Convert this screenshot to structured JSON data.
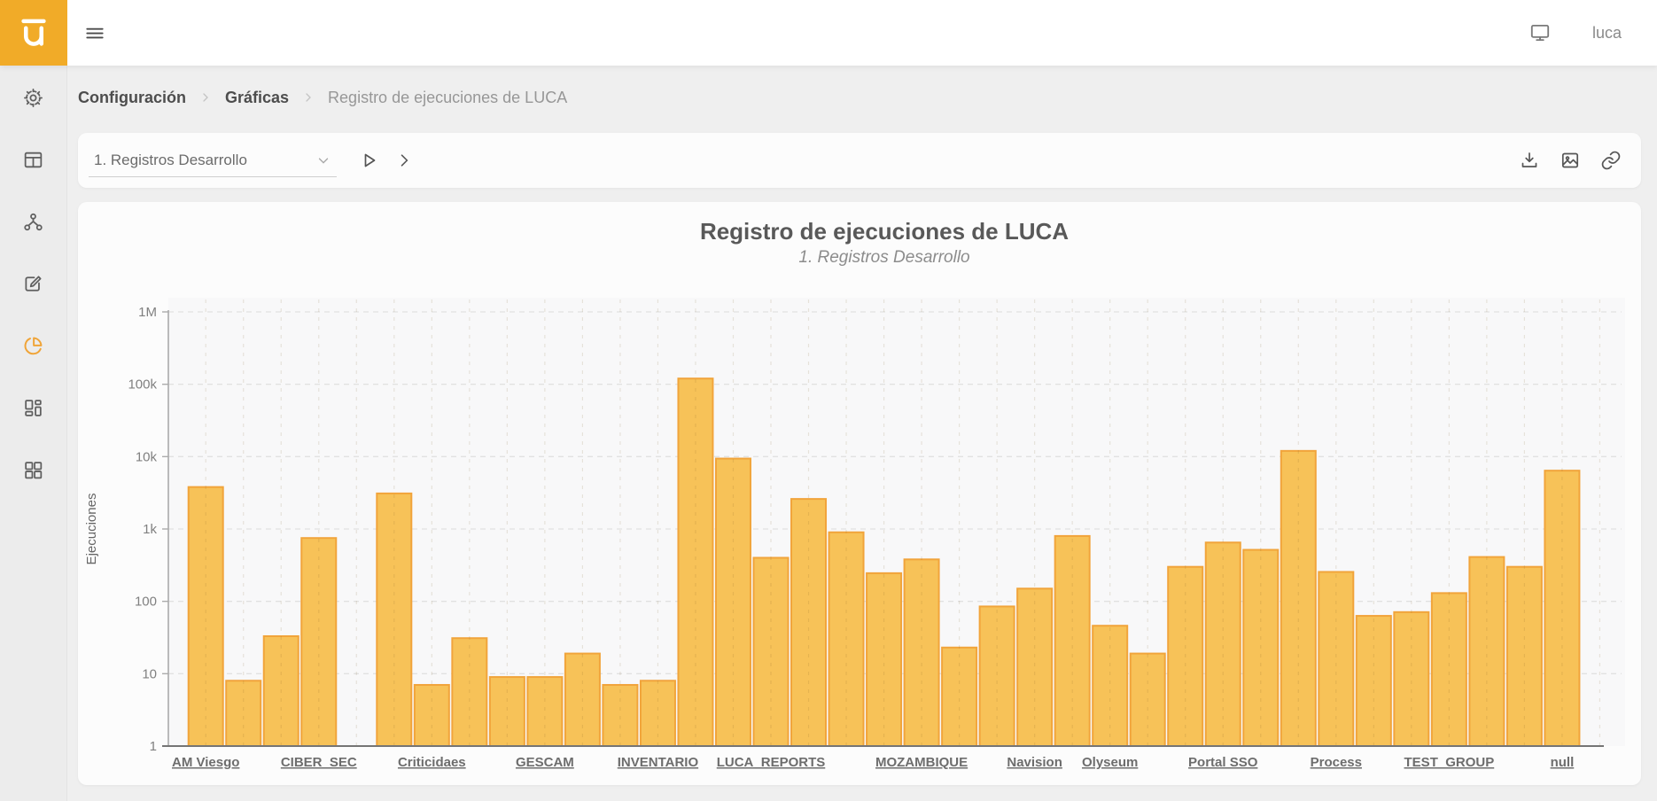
{
  "header": {
    "user": "luca"
  },
  "sidebar": {
    "items": [
      {
        "icon": "gear-icon",
        "active": false
      },
      {
        "icon": "table-icon",
        "active": false
      },
      {
        "icon": "hierarchy-icon",
        "active": false
      },
      {
        "icon": "edit-icon",
        "active": false
      },
      {
        "icon": "pie-chart-icon",
        "active": true
      },
      {
        "icon": "layout-icon",
        "active": false
      },
      {
        "icon": "grid-icon",
        "active": false
      }
    ]
  },
  "breadcrumb": {
    "items": [
      "Configuración",
      "Gráficas",
      "Registro de ejecuciones de LUCA"
    ]
  },
  "toolbar": {
    "select_value": "1. Registros Desarrollo",
    "left_icons": [
      "play-icon",
      "chevron-right-icon"
    ],
    "right_icons": [
      "download-icon",
      "image-icon",
      "link-icon"
    ]
  },
  "chart_data": {
    "type": "bar",
    "title": "Registro de ejecuciones de LUCA",
    "subtitle": "1. Registros Desarrollo",
    "ylabel": "Ejecuciones",
    "yscale": "log",
    "ylim": [
      1,
      1000000
    ],
    "ytick_labels": [
      "1",
      "10",
      "100",
      "1k",
      "10k",
      "100k",
      "1M"
    ],
    "grid": true,
    "legend": false,
    "bar_color": "#F7C258",
    "bar_border_color": "#F1A43B",
    "groups": [
      {
        "label": "AM Viesgo",
        "values": [
          3800,
          8,
          33
        ]
      },
      {
        "label": "CIBER_SEC",
        "values": [
          750,
          null,
          3100
        ]
      },
      {
        "label": "Criticidaes",
        "values": [
          7,
          31,
          9
        ]
      },
      {
        "label": "GESCAM",
        "values": [
          9,
          19,
          7
        ]
      },
      {
        "label": "INVENTARIO",
        "values": [
          8,
          120000,
          9400
        ]
      },
      {
        "label": "LUCA_REPORTS",
        "values": [
          400,
          2600,
          900,
          245
        ]
      },
      {
        "label": "MOZAMBIQUE",
        "values": [
          380,
          23,
          85
        ]
      },
      {
        "label": "Navision",
        "values": [
          150,
          800
        ]
      },
      {
        "label": "Olyseum",
        "values": [
          46,
          19,
          300
        ]
      },
      {
        "label": "Portal SSO",
        "values": [
          650,
          515,
          12000
        ]
      },
      {
        "label": "Process",
        "values": [
          255,
          63,
          71
        ]
      },
      {
        "label": "TEST_GROUP",
        "values": [
          130,
          410,
          300
        ]
      },
      {
        "label": "null",
        "values": [
          6400
        ]
      }
    ]
  },
  "colors": {
    "brand": "#F1AB28",
    "active_icon": "#F0A437",
    "bar": "#F7C258",
    "bar_border": "#F1A43B",
    "grid_line": "#E1E1E1"
  }
}
